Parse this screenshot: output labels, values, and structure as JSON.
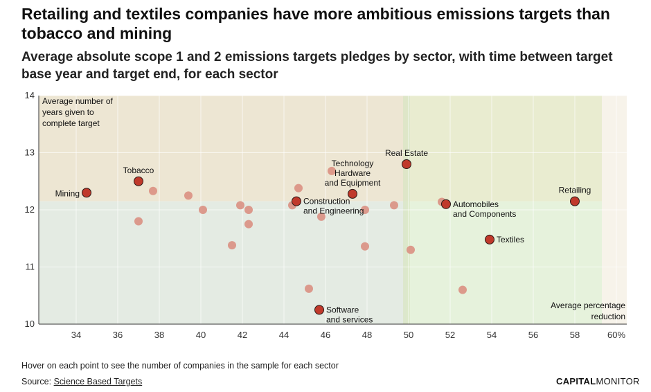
{
  "title": "Retailing and textiles companies have more ambitious emissions targets than tobacco and mining",
  "subtitle": "Average absolute scope 1 and 2 emissions targets pledges by sector, with time between target base year and target end, for each sector",
  "note": "Hover on each point to see the number of companies in the sample for each sector",
  "source_prefix": "Source:",
  "source_link": "Science Based Targets",
  "brand_bold": "CAPITAL",
  "brand_light": "MONITOR",
  "colors": {
    "highlight": "#c0392b",
    "highlight_stroke": "#2b1a17",
    "background_point": "#d98b7d",
    "quad_top_left": "#ede6d3",
    "quad_top_right": "#e9ecd0",
    "quad_bottom_left": "#e4ebe3",
    "quad_bottom_right": "#e6f2dc",
    "mean_line": "#d9e6c6"
  },
  "chart_data": {
    "type": "scatter",
    "ylabel": "Average number of years given to complete target",
    "xlabel": "Average percentage reduction",
    "xlim": [
      32.2,
      60.5
    ],
    "ylim": [
      10,
      14
    ],
    "x_ticks": [
      "34",
      "36",
      "38",
      "40",
      "42",
      "44",
      "46",
      "48",
      "50",
      "52",
      "54",
      "56",
      "58",
      "60%"
    ],
    "x_tick_values": [
      34,
      36,
      38,
      40,
      42,
      44,
      46,
      48,
      50,
      52,
      54,
      56,
      58,
      60
    ],
    "y_ticks": [
      "10",
      "11",
      "12",
      "13",
      "14"
    ],
    "y_tick_values": [
      10,
      11,
      12,
      13,
      14
    ],
    "mean_x": 49.9,
    "mean_y": 12.15,
    "grid": true,
    "highlighted_points": [
      {
        "label": "Mining",
        "x": 34.5,
        "y": 12.3,
        "label_pos": "left"
      },
      {
        "label": "Tobacco",
        "x": 37.0,
        "y": 12.5,
        "label_pos": "above"
      },
      {
        "label": "Construction and Engineering",
        "x": 44.6,
        "y": 12.15,
        "label_pos": "right"
      },
      {
        "label": "Technology Hardware and Equipment",
        "x": 47.3,
        "y": 12.28,
        "label_pos": "above"
      },
      {
        "label": "Real Estate",
        "x": 49.9,
        "y": 12.8,
        "label_pos": "above"
      },
      {
        "label": "Automobiles and Components",
        "x": 51.8,
        "y": 12.1,
        "label_pos": "right"
      },
      {
        "label": "Textiles",
        "x": 53.9,
        "y": 11.48,
        "label_pos": "right"
      },
      {
        "label": "Retailing",
        "x": 58.0,
        "y": 12.15,
        "label_pos": "above"
      },
      {
        "label": "Software and services",
        "x": 45.7,
        "y": 10.25,
        "label_pos": "right"
      }
    ],
    "other_points": [
      {
        "x": 37.7,
        "y": 12.33
      },
      {
        "x": 39.4,
        "y": 12.25
      },
      {
        "x": 40.1,
        "y": 12.0
      },
      {
        "x": 37.0,
        "y": 11.8
      },
      {
        "x": 41.9,
        "y": 12.08
      },
      {
        "x": 42.3,
        "y": 12.0
      },
      {
        "x": 42.3,
        "y": 11.75
      },
      {
        "x": 41.5,
        "y": 11.38
      },
      {
        "x": 44.7,
        "y": 12.38
      },
      {
        "x": 44.4,
        "y": 12.08
      },
      {
        "x": 45.8,
        "y": 11.88
      },
      {
        "x": 46.3,
        "y": 12.68
      },
      {
        "x": 47.9,
        "y": 12.0
      },
      {
        "x": 47.9,
        "y": 11.36
      },
      {
        "x": 49.3,
        "y": 12.08
      },
      {
        "x": 50.1,
        "y": 11.3
      },
      {
        "x": 45.2,
        "y": 10.62
      },
      {
        "x": 51.6,
        "y": 12.14
      },
      {
        "x": 52.6,
        "y": 10.6
      }
    ]
  }
}
